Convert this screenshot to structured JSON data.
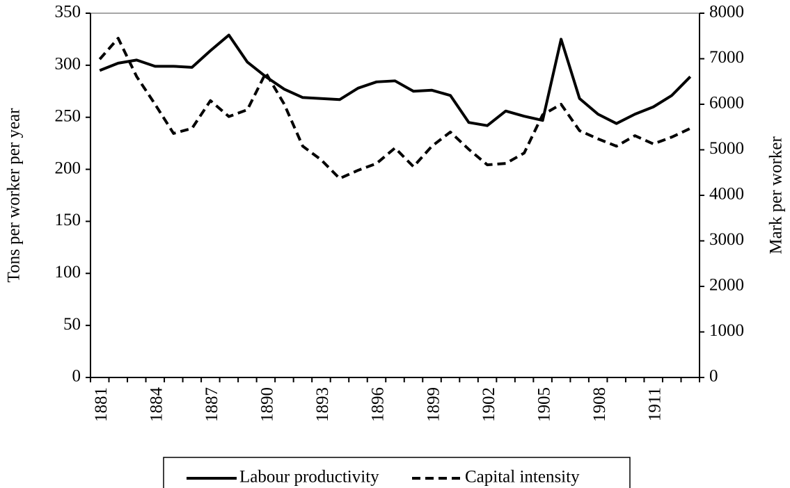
{
  "chart_data": {
    "type": "line",
    "categories": [
      "1881",
      null,
      null,
      "1884",
      null,
      null,
      "1887",
      null,
      null,
      "1890",
      null,
      null,
      "1893",
      null,
      null,
      "1896",
      null,
      null,
      "1899",
      null,
      null,
      "1902",
      null,
      null,
      "1905",
      null,
      null,
      "1908",
      null,
      null,
      "1911",
      null,
      null
    ],
    "series": [
      {
        "name": "Labour productivity",
        "color": "#000000",
        "dash": false,
        "values": [
          295,
          302,
          305,
          299,
          299,
          298,
          314,
          329,
          303,
          289,
          277,
          269,
          268,
          267,
          278,
          284,
          285,
          275,
          276,
          271,
          245,
          242,
          256,
          251,
          247,
          325,
          268,
          253,
          244,
          253,
          260,
          271,
          289
        ]
      },
      {
        "name": "Capital intensity",
        "color": "#000000",
        "dash": true,
        "axis": "y2",
        "values": [
          6990,
          7450,
          6610,
          6000,
          5360,
          5470,
          6080,
          5730,
          5880,
          6690,
          6000,
          5080,
          4780,
          4370,
          4550,
          4700,
          5040,
          4630,
          5080,
          5390,
          5010,
          4670,
          4700,
          4930,
          5770,
          6000,
          5420,
          5240,
          5080,
          5310,
          5130,
          5280,
          5470
        ]
      }
    ],
    "ylabel": "Tons per worker per year",
    "y2label": "Mark per worker",
    "ylim": [
      0,
      350
    ],
    "yticks": [
      0,
      50,
      100,
      150,
      200,
      250,
      300,
      350
    ],
    "y2lim": [
      0,
      8000
    ],
    "y2ticks": [
      0,
      1000,
      2000,
      3000,
      4000,
      5000,
      6000,
      7000,
      8000
    ],
    "legend": "bottom"
  }
}
